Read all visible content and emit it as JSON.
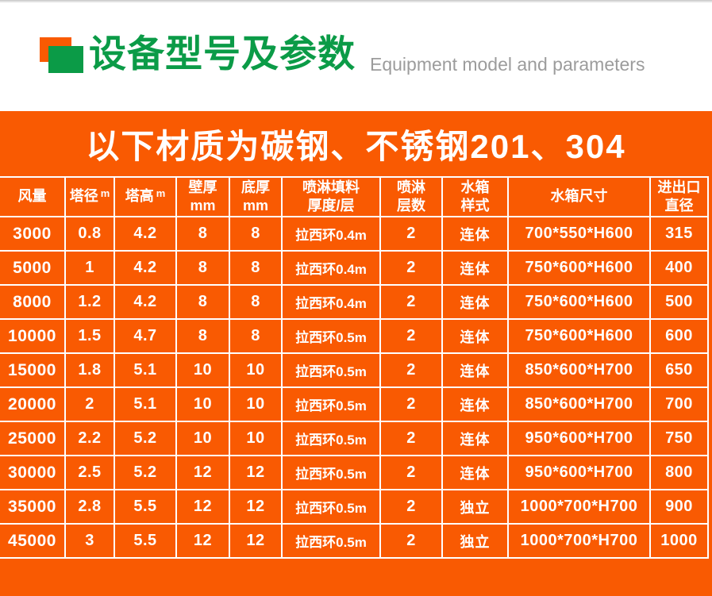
{
  "header": {
    "title_cn": "设备型号及参数",
    "title_en": "Equipment model and parameters"
  },
  "banner": {
    "text": "以下材质为碳钢、不锈钢201、304"
  },
  "table": {
    "columns": [
      {
        "lines": [
          "风量"
        ]
      },
      {
        "lines": [
          "塔径"
        ],
        "unit": "m"
      },
      {
        "lines": [
          "塔高"
        ],
        "unit": "m"
      },
      {
        "lines": [
          "壁厚",
          "mm"
        ]
      },
      {
        "lines": [
          "底厚",
          "mm"
        ]
      },
      {
        "lines": [
          "喷淋填料",
          "厚度/层"
        ]
      },
      {
        "lines": [
          "喷淋",
          "层数"
        ]
      },
      {
        "lines": [
          "水箱",
          "样式"
        ]
      },
      {
        "lines": [
          "水箱尺寸"
        ]
      },
      {
        "lines": [
          "进出口",
          "直径"
        ]
      }
    ],
    "rows": [
      [
        "3000",
        "0.8",
        "4.2",
        "8",
        "8",
        "拉西环0.4m",
        "2",
        "连体",
        "700*550*H600",
        "315"
      ],
      [
        "5000",
        "1",
        "4.2",
        "8",
        "8",
        "拉西环0.4m",
        "2",
        "连体",
        "750*600*H600",
        "400"
      ],
      [
        "8000",
        "1.2",
        "4.2",
        "8",
        "8",
        "拉西环0.4m",
        "2",
        "连体",
        "750*600*H600",
        "500"
      ],
      [
        "10000",
        "1.5",
        "4.7",
        "8",
        "8",
        "拉西环0.5m",
        "2",
        "连体",
        "750*600*H600",
        "600"
      ],
      [
        "15000",
        "1.8",
        "5.1",
        "10",
        "10",
        "拉西环0.5m",
        "2",
        "连体",
        "850*600*H700",
        "650"
      ],
      [
        "20000",
        "2",
        "5.1",
        "10",
        "10",
        "拉西环0.5m",
        "2",
        "连体",
        "850*600*H700",
        "700"
      ],
      [
        "25000",
        "2.2",
        "5.2",
        "10",
        "10",
        "拉西环0.5m",
        "2",
        "连体",
        "950*600*H700",
        "750"
      ],
      [
        "30000",
        "2.5",
        "5.2",
        "12",
        "12",
        "拉西环0.5m",
        "2",
        "连体",
        "950*600*H700",
        "800"
      ],
      [
        "35000",
        "2.8",
        "5.5",
        "12",
        "12",
        "拉西环0.5m",
        "2",
        "独立",
        "1000*700*H700",
        "900"
      ],
      [
        "45000",
        "3",
        "5.5",
        "12",
        "12",
        "拉西环0.5m",
        "2",
        "独立",
        "1000*700*H700",
        "1000"
      ]
    ]
  },
  "colors": {
    "orange": "#f95a02",
    "green": "#0b9b47",
    "gray_text": "#9c9c9c",
    "white": "#ffffff"
  }
}
